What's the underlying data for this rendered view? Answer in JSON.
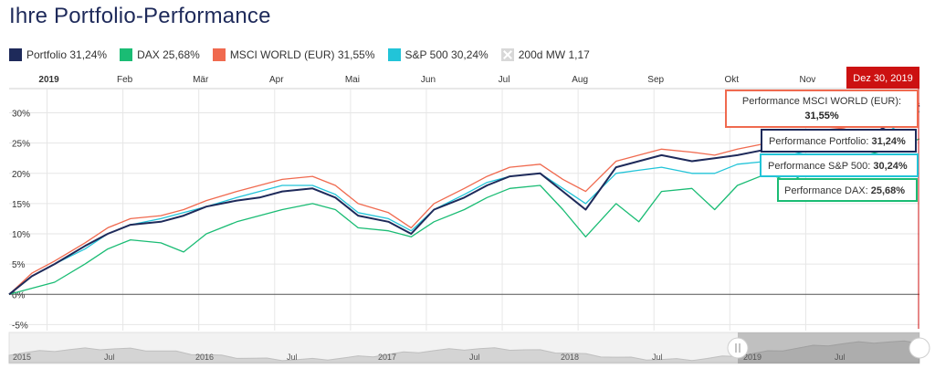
{
  "page": {
    "title": "Ihre Portfolio-Performance"
  },
  "legend": [
    {
      "key": "portfolio",
      "label": "Portfolio",
      "value": "31,24%",
      "color": "#1e2a5a"
    },
    {
      "key": "dax",
      "label": "DAX",
      "value": "25,68%",
      "color": "#1abc74"
    },
    {
      "key": "msci",
      "label": "MSCI WORLD (EUR)",
      "value": "31,55%",
      "color": "#f06a4f"
    },
    {
      "key": "sp500",
      "label": "S&P 500",
      "value": "30,24%",
      "color": "#22c4d8"
    },
    {
      "key": "ma200",
      "label": "200d MW",
      "value": "1,17",
      "color": "#c8c8c8"
    }
  ],
  "date_badge": {
    "text": "Dez 30, 2019",
    "color": "#cc1111"
  },
  "tooltips": [
    {
      "key": "msci",
      "label": "Performance MSCI WORLD (EUR):",
      "value": "31,55%",
      "color": "#f06a4f"
    },
    {
      "key": "portfolio",
      "label": "Performance Portfolio:",
      "value": "31,24%",
      "color": "#1e2a5a"
    },
    {
      "key": "sp500",
      "label": "Performance S&P 500:",
      "value": "30,24%",
      "color": "#22c4d8"
    },
    {
      "key": "dax",
      "label": "Performance DAX:",
      "value": "25,68%",
      "color": "#1abc74"
    }
  ],
  "navigator": {
    "labels": [
      "2015",
      "Jul",
      "2016",
      "Jul",
      "2017",
      "Jul",
      "2018",
      "Jul",
      "2019",
      "Jul"
    ]
  },
  "chart_data": {
    "type": "line",
    "x_ticks": [
      "2019",
      "Feb",
      "Mär",
      "Apr",
      "Mai",
      "Jun",
      "Jul",
      "Aug",
      "Sep",
      "Okt",
      "Nov"
    ],
    "y_ticks": [
      "30%",
      "25%",
      "20%",
      "15%",
      "10%",
      "5%",
      "0%",
      "-5%"
    ],
    "y_tick_values": [
      30,
      25,
      20,
      15,
      10,
      5,
      0,
      -5
    ],
    "ylim": [
      -6,
      34
    ],
    "xlim": [
      0,
      12
    ],
    "grid": true,
    "legend_position": "top-left",
    "series": [
      {
        "name": "Portfolio",
        "color": "#1e2a5a",
        "x": [
          0,
          0.3,
          0.6,
          1,
          1.3,
          1.6,
          2,
          2.3,
          2.6,
          3,
          3.3,
          3.6,
          4,
          4.3,
          4.6,
          5,
          5.3,
          5.6,
          6,
          6.3,
          6.6,
          7,
          7.3,
          7.6,
          8,
          8.3,
          8.6,
          9,
          9.3,
          9.6,
          10,
          10.3,
          10.6,
          11,
          11.3,
          11.6,
          12
        ],
        "values": [
          0,
          3,
          5,
          8,
          10,
          11.5,
          12,
          13,
          14.5,
          15.5,
          16,
          17,
          17.5,
          16,
          13,
          12,
          10,
          14,
          16,
          18,
          19.5,
          20,
          17,
          14,
          21,
          22,
          23,
          22,
          22.5,
          23,
          24,
          24.5,
          25.5,
          25.5,
          26,
          28,
          31.24
        ]
      },
      {
        "name": "DAX",
        "color": "#1abc74",
        "x": [
          0,
          0.3,
          0.6,
          1,
          1.3,
          1.6,
          2,
          2.3,
          2.6,
          3,
          3.3,
          3.6,
          4,
          4.3,
          4.6,
          5,
          5.3,
          5.6,
          6,
          6.3,
          6.6,
          7,
          7.3,
          7.6,
          8,
          8.3,
          8.6,
          9,
          9.3,
          9.6,
          10,
          10.3,
          10.6,
          11,
          11.3,
          11.6,
          12
        ],
        "values": [
          0,
          1,
          2,
          5,
          7.5,
          9,
          8.5,
          7,
          10,
          12,
          13,
          14,
          15,
          14,
          11,
          10.5,
          9.5,
          12,
          14,
          16,
          17.5,
          18,
          14,
          9.5,
          15,
          12,
          17,
          17.5,
          14,
          18,
          20,
          18.5,
          21,
          22,
          23,
          24,
          25.68
        ]
      },
      {
        "name": "MSCI WORLD (EUR)",
        "color": "#f06a4f",
        "x": [
          0,
          0.3,
          0.6,
          1,
          1.3,
          1.6,
          2,
          2.3,
          2.6,
          3,
          3.3,
          3.6,
          4,
          4.3,
          4.6,
          5,
          5.3,
          5.6,
          6,
          6.3,
          6.6,
          7,
          7.3,
          7.6,
          8,
          8.3,
          8.6,
          9,
          9.3,
          9.6,
          10,
          10.3,
          10.6,
          11,
          11.3,
          11.6,
          12
        ],
        "values": [
          0,
          3.5,
          5.5,
          8.5,
          11,
          12.5,
          13,
          14,
          15.5,
          17,
          18,
          19,
          19.5,
          18,
          15,
          13.5,
          11,
          15,
          17.5,
          19.5,
          21,
          21.5,
          19,
          17,
          22,
          23,
          24,
          23.5,
          23,
          24,
          25,
          26,
          27,
          27.5,
          28.5,
          29.5,
          31.55
        ]
      },
      {
        "name": "S&P 500",
        "color": "#22c4d8",
        "x": [
          0,
          0.3,
          0.6,
          1,
          1.3,
          1.6,
          2,
          2.3,
          2.6,
          3,
          3.3,
          3.6,
          4,
          4.3,
          4.6,
          5,
          5.3,
          5.6,
          6,
          6.3,
          6.6,
          7,
          7.3,
          7.6,
          8,
          8.3,
          8.6,
          9,
          9.3,
          9.6,
          10,
          10.3,
          10.6,
          11,
          11.3,
          11.6,
          12
        ],
        "values": [
          0,
          3,
          5,
          7.5,
          10,
          11.5,
          12.5,
          13.5,
          14.5,
          16,
          17,
          18,
          18,
          16.5,
          13.5,
          12.5,
          10.5,
          14,
          16.5,
          18.5,
          19.5,
          20,
          17.5,
          15,
          20,
          20.5,
          21,
          20,
          20,
          21.5,
          22,
          23,
          24,
          24.5,
          25.5,
          27,
          30.24
        ]
      }
    ]
  }
}
